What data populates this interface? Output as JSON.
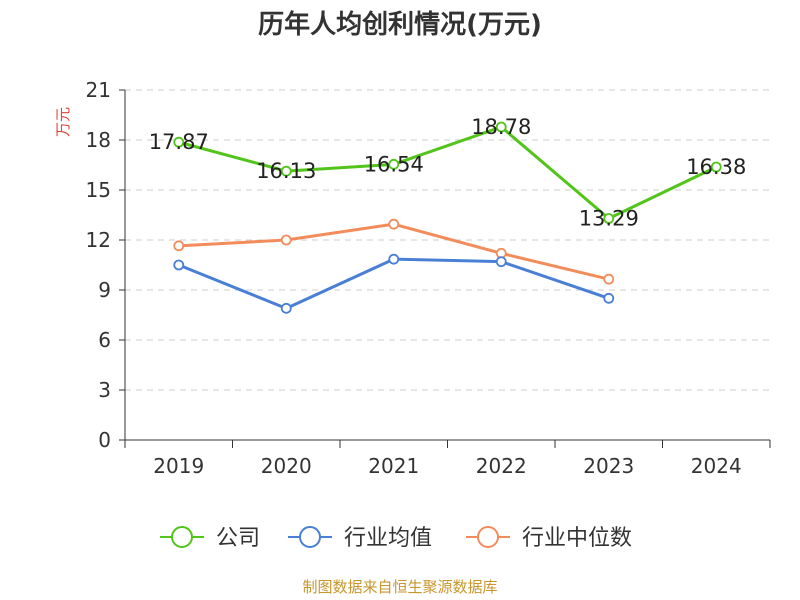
{
  "chart_data": {
    "type": "line",
    "title": "历年人均创利情况(万元)",
    "ylabel": "万元",
    "xlabel": "",
    "categories": [
      "2019",
      "2020",
      "2021",
      "2022",
      "2023",
      "2024"
    ],
    "ylim": [
      0,
      21
    ],
    "yticks": [
      0,
      3,
      6,
      9,
      12,
      15,
      18,
      21
    ],
    "grid": true,
    "series": [
      {
        "name": "公司",
        "color": "#52c41a",
        "values": [
          17.87,
          16.13,
          16.54,
          18.78,
          13.29,
          16.38
        ],
        "labels": [
          "17.87",
          "16.13",
          "16.54",
          "18.78",
          "13.29",
          "16.38"
        ]
      },
      {
        "name": "行业均值",
        "color": "#4a7fd6",
        "values": [
          10.5,
          7.9,
          10.85,
          10.7,
          8.5,
          null
        ]
      },
      {
        "name": "行业中位数",
        "color": "#f28c5a",
        "values": [
          11.65,
          12.0,
          12.95,
          11.2,
          9.65,
          null
        ]
      }
    ],
    "legend_position": "bottom"
  },
  "colors": {
    "ylabel": "#e0453a",
    "source": "#c8962d",
    "axis": "#333333",
    "grid": "#cccccc"
  },
  "source": "制图数据来自恒生聚源数据库"
}
